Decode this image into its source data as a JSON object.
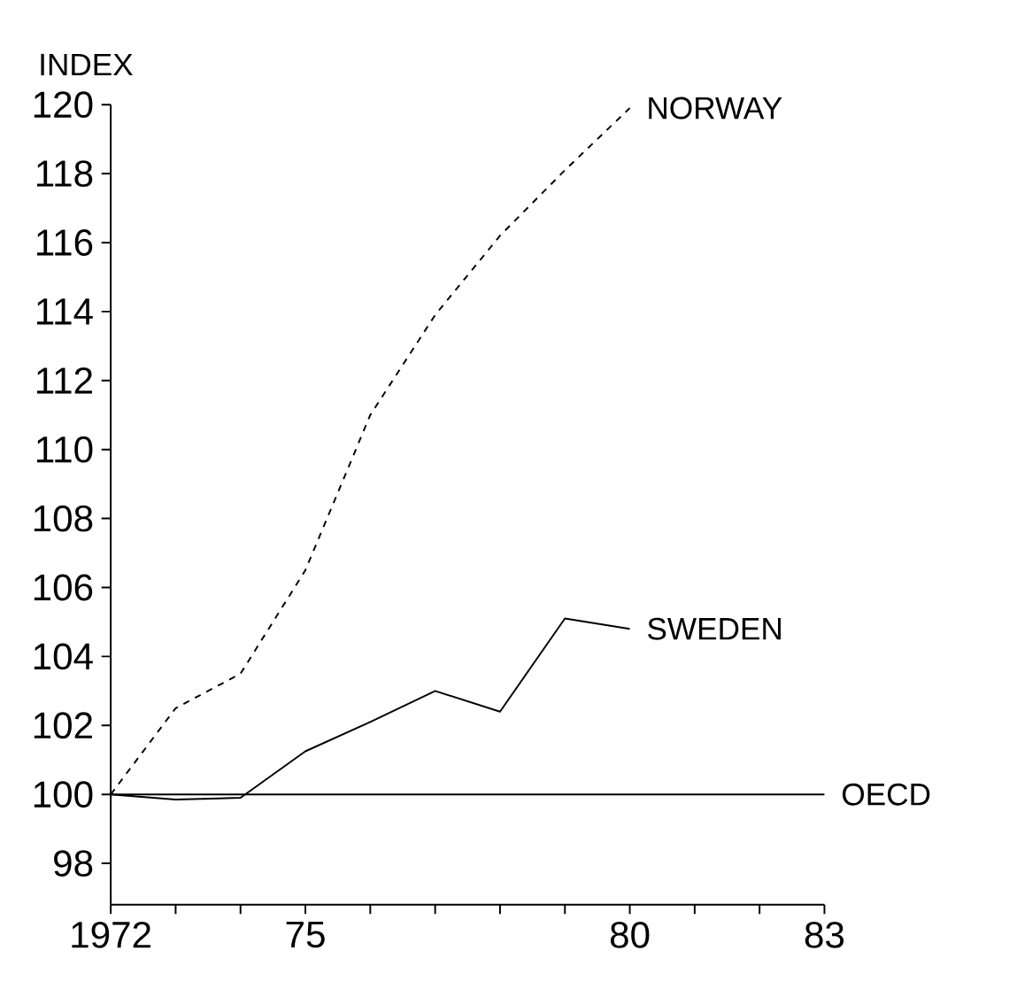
{
  "chart_data": {
    "type": "line",
    "ylabel": "INDEX",
    "x": [
      1972,
      1973,
      1974,
      1975,
      1976,
      1977,
      1978,
      1979,
      1980
    ],
    "series": [
      {
        "name": "NORWAY",
        "color": "#000000",
        "line_style": "dashed",
        "values": [
          100,
          102.5,
          103.5,
          106.5,
          111,
          113.9,
          116.2,
          118.1,
          119.9
        ]
      },
      {
        "name": "SWEDEN",
        "color": "#000000",
        "line_style": "solid",
        "values": [
          100,
          99.85,
          99.9,
          101.25,
          102.1,
          103,
          102.4,
          105.1,
          104.8
        ]
      },
      {
        "name": "OECD",
        "color": "#000000",
        "line_style": "solid",
        "x": [
          1972,
          1983
        ],
        "values": [
          100,
          100
        ]
      }
    ],
    "xlim": [
      1972,
      1983
    ],
    "ylim": [
      96.8,
      120
    ],
    "xticks": [
      {
        "value": 1972,
        "label": "1972"
      },
      {
        "value": 1973,
        "label": null
      },
      {
        "value": 1974,
        "label": null
      },
      {
        "value": 1975,
        "label": "75"
      },
      {
        "value": 1976,
        "label": null
      },
      {
        "value": 1977,
        "label": null
      },
      {
        "value": 1978,
        "label": null
      },
      {
        "value": 1979,
        "label": null
      },
      {
        "value": 1980,
        "label": "80"
      },
      {
        "value": 1981,
        "label": null
      },
      {
        "value": 1982,
        "label": null
      },
      {
        "value": 1983,
        "label": "83"
      }
    ],
    "yticks": [
      98,
      100,
      102,
      104,
      106,
      108,
      110,
      112,
      114,
      116,
      118,
      120
    ],
    "grid": false
  }
}
